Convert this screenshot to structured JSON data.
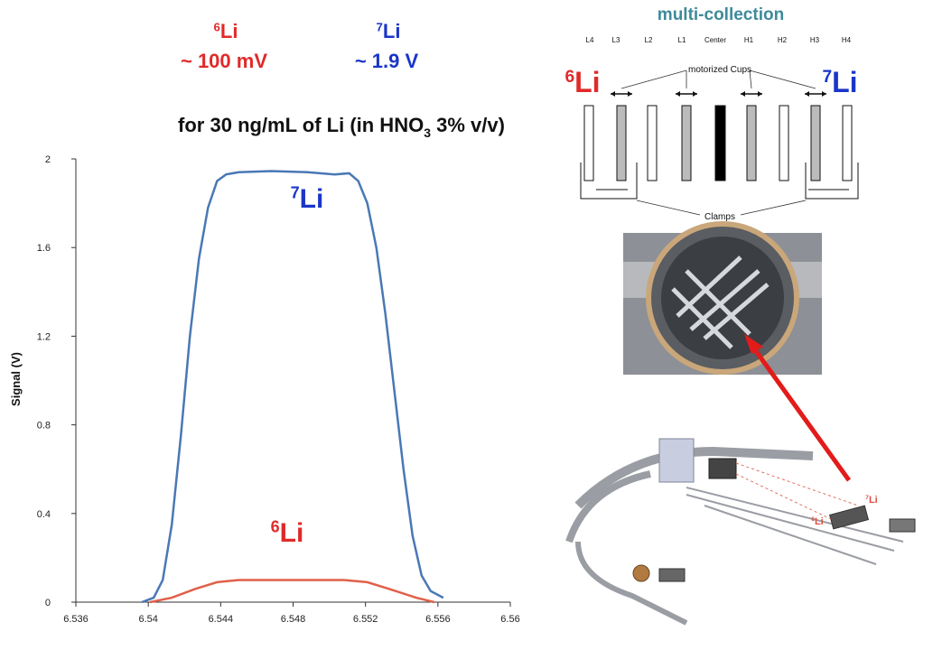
{
  "chart_data": {
    "type": "line",
    "header": [
      {
        "mass": "6",
        "symbol": "Li",
        "signal": "~ 100 mV",
        "color": "#e02a2a"
      },
      {
        "mass": "7",
        "symbol": "Li",
        "signal": "~ 1.9 V",
        "color": "#1a35c8"
      }
    ],
    "title": {
      "before": "for 30 ng/mL of Li (in HNO",
      "sub": "3",
      "after": " 3% v/v)"
    },
    "ylabel": "Signal (V)",
    "xlim": [
      6.536,
      6.56
    ],
    "xticks": [
      6.536,
      6.54,
      6.544,
      6.548,
      6.552,
      6.556,
      6.56
    ],
    "ylim": [
      0,
      2
    ],
    "yticks": [
      0,
      0.4,
      0.8,
      1.2,
      1.6,
      2
    ],
    "series": [
      {
        "name": "7Li",
        "mass": "7",
        "symbol": "Li",
        "color": "#4a78b5",
        "label_color": "#1a35c8",
        "x": [
          6.53965,
          6.5403,
          6.5408,
          6.5413,
          6.5418,
          6.5423,
          6.5428,
          6.5433,
          6.5438,
          6.5443,
          6.545,
          6.5468,
          6.5488,
          6.5503,
          6.5511,
          6.5516,
          6.5521,
          6.5526,
          6.5531,
          6.5536,
          6.5541,
          6.5546,
          6.5551,
          6.5556,
          6.5563
        ],
        "values": [
          0,
          0.02,
          0.1,
          0.35,
          0.75,
          1.2,
          1.55,
          1.78,
          1.9,
          1.93,
          1.94,
          1.945,
          1.94,
          1.93,
          1.935,
          1.9,
          1.8,
          1.6,
          1.3,
          0.95,
          0.6,
          0.3,
          0.12,
          0.05,
          0.02
        ]
      },
      {
        "name": "6Li",
        "mass": "6",
        "symbol": "Li",
        "color": "#e0604a",
        "label_color": "#e02a2a",
        "x": [
          6.5401,
          6.5413,
          6.5426,
          6.5438,
          6.545,
          6.5508,
          6.5521,
          6.5533,
          6.5548,
          6.5558
        ],
        "values": [
          0,
          0.02,
          0.06,
          0.09,
          0.1,
          0.1,
          0.09,
          0.06,
          0.02,
          0
        ]
      }
    ]
  },
  "diagram": {
    "title": "multi-collection",
    "cups": [
      "L4",
      "L3",
      "L2",
      "L1",
      "Center",
      "H1",
      "H2",
      "H3",
      "H4"
    ],
    "motorized": "motorized Cups",
    "clamps": "Clamps",
    "left": {
      "mass": "6",
      "symbol": "Li"
    },
    "right": {
      "mass": "7",
      "symbol": "Li"
    },
    "beam_labels": [
      {
        "mass": "7",
        "symbol": "Li"
      },
      {
        "mass": "6",
        "symbol": "Li"
      }
    ]
  }
}
